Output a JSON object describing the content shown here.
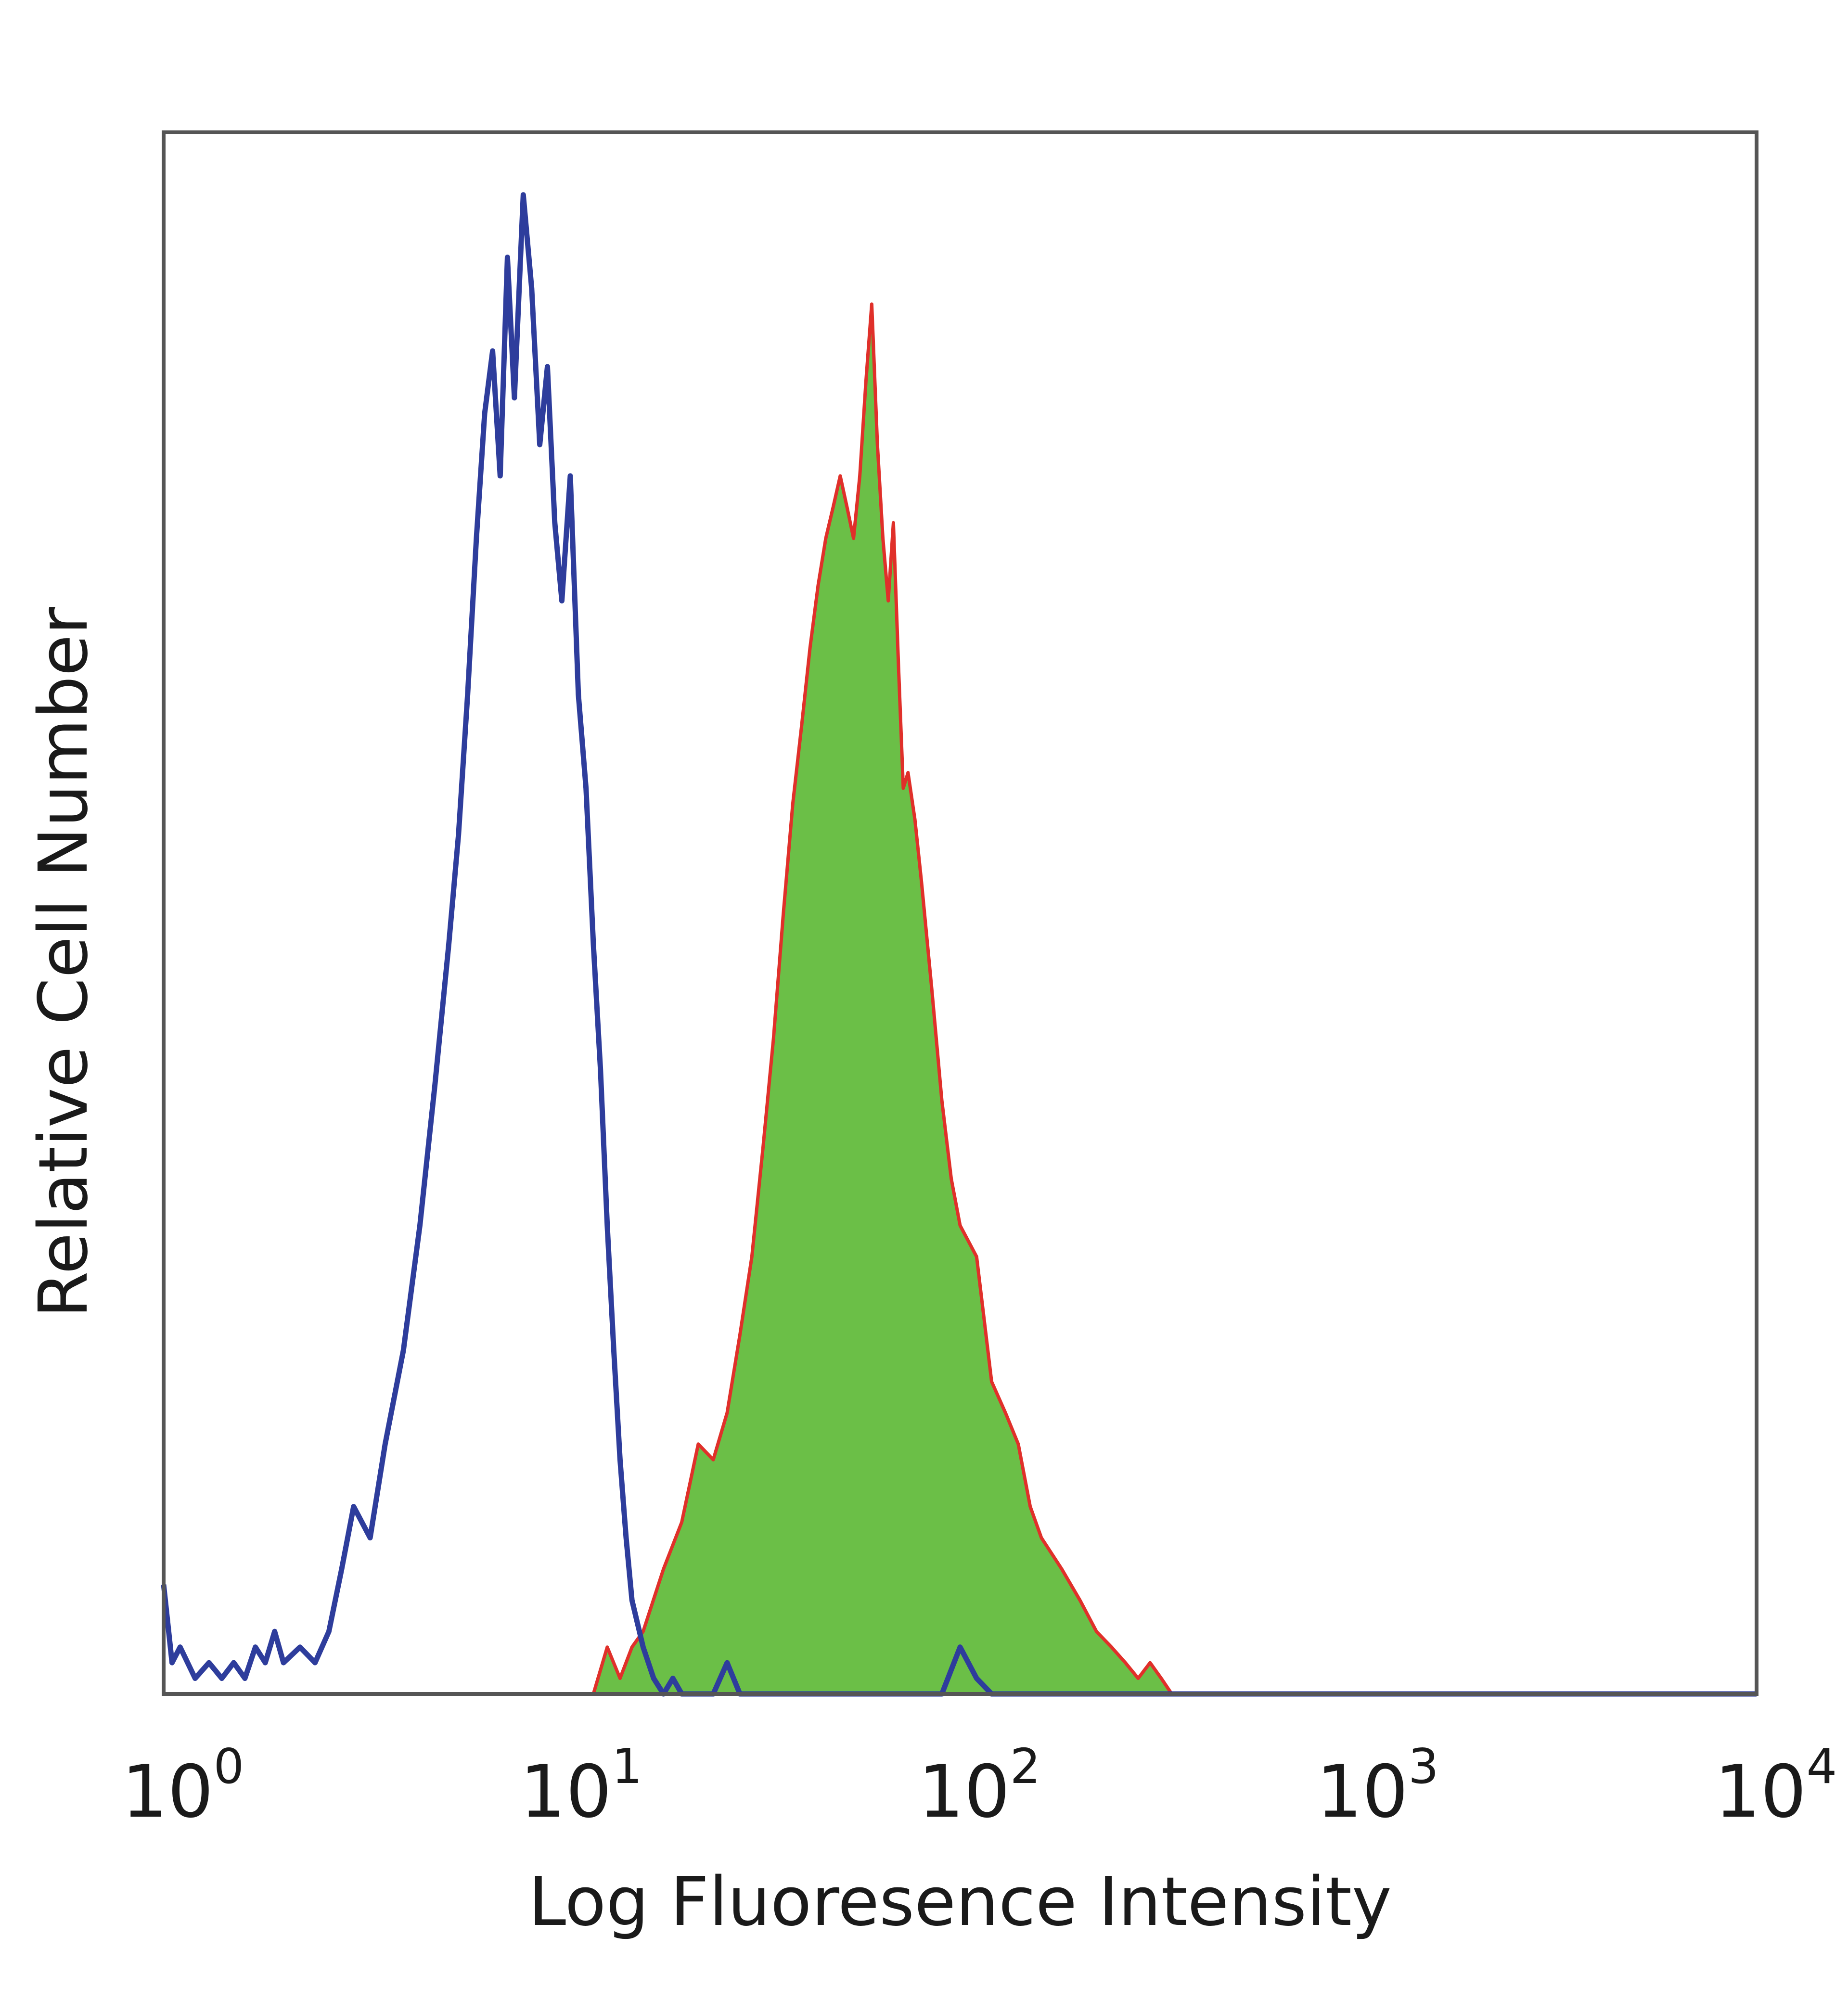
{
  "chart_data": {
    "type": "area",
    "xscale": "log",
    "xlim": [
      1,
      10000
    ],
    "ylim": [
      0,
      1
    ],
    "grid": false,
    "legend": "none",
    "xlabel": "Log Fluoresence Intensity",
    "ylabel": "Relative Cell Number",
    "xticks": [
      {
        "base": "10",
        "exp": "0",
        "value": 1
      },
      {
        "base": "10",
        "exp": "1",
        "value": 10
      },
      {
        "base": "10",
        "exp": "2",
        "value": 100
      },
      {
        "base": "10",
        "exp": "3",
        "value": 1000
      },
      {
        "base": "10",
        "exp": "4",
        "value": 10000
      }
    ],
    "series": [
      {
        "style": "outline",
        "color": "#2e3d9c",
        "x": [
          1.0,
          1.05,
          1.1,
          1.2,
          1.3,
          1.4,
          1.5,
          1.6,
          1.7,
          1.8,
          1.9,
          2.0,
          2.2,
          2.4,
          2.6,
          2.8,
          3.0,
          3.3,
          3.6,
          4.0,
          4.4,
          4.8,
          5.2,
          5.5,
          5.8,
          6.1,
          6.4,
          6.7,
          7.0,
          7.3,
          7.6,
          8.0,
          8.4,
          8.8,
          9.2,
          9.6,
          10.0,
          10.5,
          11.0,
          11.5,
          12.0,
          12.5,
          13.0,
          13.5,
          14.0,
          14.5,
          15.0,
          16.0,
          17.0,
          18.0,
          19.0,
          20.0,
          24.0,
          26.0,
          28.0,
          30.0,
          90.0,
          100.0,
          110.0,
          120.0,
          1000.0,
          10000.0
        ],
        "y": [
          0.07,
          0.02,
          0.03,
          0.01,
          0.02,
          0.01,
          0.02,
          0.01,
          0.03,
          0.02,
          0.04,
          0.02,
          0.03,
          0.02,
          0.04,
          0.08,
          0.12,
          0.1,
          0.16,
          0.22,
          0.3,
          0.39,
          0.48,
          0.55,
          0.64,
          0.74,
          0.82,
          0.86,
          0.78,
          0.92,
          0.83,
          0.96,
          0.9,
          0.8,
          0.85,
          0.75,
          0.7,
          0.78,
          0.64,
          0.58,
          0.48,
          0.4,
          0.3,
          0.22,
          0.15,
          0.1,
          0.06,
          0.03,
          0.01,
          0.0,
          0.01,
          0.0,
          0.0,
          0.02,
          0.0,
          0.0,
          0.0,
          0.03,
          0.01,
          0.0,
          0.0,
          0.0
        ]
      },
      {
        "style": "filled",
        "color": "#6bbf47",
        "stroke": "#e0302a",
        "x": [
          1.0,
          12.0,
          13.0,
          14.0,
          15.0,
          16.0,
          18.0,
          20.0,
          22.0,
          24.0,
          26.0,
          28.0,
          30.0,
          32.0,
          34.0,
          36.0,
          38.0,
          40.0,
          42.0,
          44.0,
          46.0,
          48.0,
          50.0,
          52.0,
          54.0,
          56.0,
          58.0,
          60.0,
          62.0,
          64.0,
          66.0,
          68.0,
          70.0,
          72.0,
          74.0,
          77.0,
          80.0,
          85.0,
          90.0,
          95.0,
          100.0,
          110.0,
          120.0,
          130.0,
          140.0,
          150.0,
          160.0,
          180.0,
          200.0,
          220.0,
          240.0,
          260.0,
          280.0,
          300.0,
          320.0,
          340.0
        ],
        "y": [
          0.0,
          0.0,
          0.03,
          0.01,
          0.03,
          0.04,
          0.08,
          0.11,
          0.16,
          0.15,
          0.18,
          0.23,
          0.28,
          0.35,
          0.42,
          0.5,
          0.57,
          0.62,
          0.67,
          0.71,
          0.74,
          0.76,
          0.78,
          0.76,
          0.74,
          0.78,
          0.84,
          0.89,
          0.8,
          0.74,
          0.7,
          0.75,
          0.66,
          0.58,
          0.59,
          0.56,
          0.52,
          0.45,
          0.38,
          0.33,
          0.3,
          0.28,
          0.2,
          0.18,
          0.16,
          0.12,
          0.1,
          0.08,
          0.06,
          0.04,
          0.03,
          0.02,
          0.01,
          0.02,
          0.01,
          0.0
        ]
      }
    ]
  }
}
